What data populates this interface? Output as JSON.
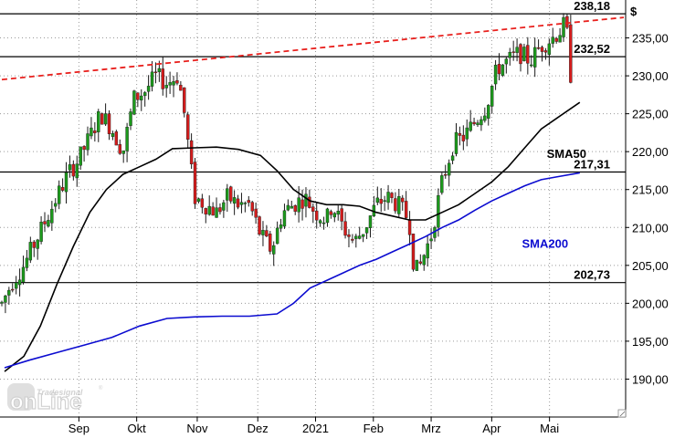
{
  "chart_data": {
    "type": "candlestick",
    "currency_label": "$",
    "y_ticks": [
      190,
      195,
      200,
      205,
      210,
      215,
      220,
      225,
      230,
      235
    ],
    "y_tick_labels": [
      "190,00",
      "195,00",
      "200,00",
      "205,00",
      "210,00",
      "215,00",
      "220,00",
      "225,00",
      "230,00",
      "235,00"
    ],
    "ylim": [
      185.0,
      240.0
    ],
    "x_labels": [
      "Sep",
      "Okt",
      "Nov",
      "Dez",
      "2021",
      "Feb",
      "Mrz",
      "Apr",
      "Mai"
    ],
    "x_label_days": [
      28,
      49,
      71,
      93,
      114,
      135,
      156,
      178,
      199
    ],
    "x_range_days": [
      0,
      226
    ],
    "levels": [
      {
        "value": 238.18,
        "label": "238,18"
      },
      {
        "value": 232.52,
        "label": "232,52"
      },
      {
        "value": 217.31,
        "label": "217,31"
      },
      {
        "value": 202.73,
        "label": "202,73"
      }
    ],
    "trendline": {
      "from": [
        0,
        229.5
      ],
      "to": [
        226,
        237.7
      ],
      "color": "#e8211e"
    },
    "series": [
      {
        "name": "SMA50",
        "color": "#000000",
        "points": [
          [
            1,
            191
          ],
          [
            8,
            193
          ],
          [
            14,
            197
          ],
          [
            20,
            202.5
          ],
          [
            26,
            207.5
          ],
          [
            32,
            212
          ],
          [
            38,
            215
          ],
          [
            44,
            217
          ],
          [
            50,
            218
          ],
          [
            56,
            219
          ],
          [
            62,
            220.4
          ],
          [
            70,
            220.5
          ],
          [
            78,
            220.6
          ],
          [
            86,
            220.3
          ],
          [
            94,
            219.5
          ],
          [
            100,
            217.5
          ],
          [
            106,
            215
          ],
          [
            112,
            213.5
          ],
          [
            118,
            213
          ],
          [
            124,
            213
          ],
          [
            130,
            212.8
          ],
          [
            136,
            212
          ],
          [
            142,
            211.5
          ],
          [
            148,
            211
          ],
          [
            154,
            211
          ],
          [
            160,
            212
          ],
          [
            166,
            213
          ],
          [
            172,
            214.5
          ],
          [
            178,
            216
          ],
          [
            184,
            218
          ],
          [
            190,
            220.5
          ],
          [
            196,
            223
          ],
          [
            202,
            224.5
          ],
          [
            210,
            226.5
          ]
        ]
      },
      {
        "name": "SMA200",
        "color": "#0b0bd0",
        "points": [
          [
            1,
            191.5
          ],
          [
            10,
            192.5
          ],
          [
            20,
            193.5
          ],
          [
            30,
            194.5
          ],
          [
            40,
            195.5
          ],
          [
            50,
            197
          ],
          [
            60,
            198
          ],
          [
            70,
            198.2
          ],
          [
            80,
            198.3
          ],
          [
            90,
            198.3
          ],
          [
            100,
            198.6
          ],
          [
            106,
            200
          ],
          [
            112,
            202
          ],
          [
            118,
            203
          ],
          [
            124,
            204
          ],
          [
            130,
            205
          ],
          [
            136,
            205.8
          ],
          [
            142,
            206.8
          ],
          [
            148,
            207.8
          ],
          [
            154,
            208.8
          ],
          [
            160,
            210
          ],
          [
            166,
            211
          ],
          [
            172,
            212.3
          ],
          [
            178,
            213.5
          ],
          [
            184,
            214.5
          ],
          [
            190,
            215.5
          ],
          [
            196,
            216.3
          ],
          [
            202,
            216.7
          ],
          [
            210,
            217.2
          ]
        ]
      }
    ],
    "series_labels": [
      {
        "name": "SMA50",
        "text": "SMA50",
        "color": "#000000",
        "at": [
          198,
          219.2
        ]
      },
      {
        "name": "SMA200",
        "text": "SMA200",
        "color": "#0b0bd0",
        "at": [
          189,
          207.3
        ]
      }
    ],
    "price_path": [
      [
        0,
        200
      ],
      [
        4,
        203
      ],
      [
        8,
        205
      ],
      [
        12,
        208
      ],
      [
        16,
        211
      ],
      [
        20,
        214
      ],
      [
        24,
        217
      ],
      [
        28,
        219
      ],
      [
        32,
        222
      ],
      [
        36,
        225
      ],
      [
        40,
        223
      ],
      [
        44,
        220
      ],
      [
        48,
        227
      ],
      [
        52,
        228
      ],
      [
        56,
        230
      ],
      [
        60,
        229
      ],
      [
        64,
        230
      ],
      [
        66,
        226
      ],
      [
        70,
        214
      ],
      [
        74,
        213
      ],
      [
        78,
        212
      ],
      [
        82,
        214
      ],
      [
        86,
        213
      ],
      [
        90,
        213
      ],
      [
        94,
        209
      ],
      [
        98,
        207
      ],
      [
        102,
        212
      ],
      [
        106,
        213
      ],
      [
        110,
        214
      ],
      [
        114,
        212
      ],
      [
        118,
        211
      ],
      [
        120,
        213
      ],
      [
        124,
        210
      ],
      [
        128,
        208
      ],
      [
        132,
        210
      ],
      [
        136,
        213
      ],
      [
        140,
        214
      ],
      [
        144,
        213
      ],
      [
        148,
        211
      ],
      [
        150,
        204
      ],
      [
        152,
        205
      ],
      [
        156,
        209
      ],
      [
        160,
        216
      ],
      [
        164,
        221
      ],
      [
        168,
        222
      ],
      [
        172,
        224
      ],
      [
        176,
        226
      ],
      [
        180,
        231
      ],
      [
        184,
        232
      ],
      [
        188,
        233
      ],
      [
        192,
        232
      ],
      [
        196,
        234
      ],
      [
        200,
        235
      ],
      [
        203,
        236
      ],
      [
        205,
        237
      ],
      [
        207,
        229
      ]
    ]
  },
  "logo": {
    "brand_small": "Tradesignal",
    "brand_big": "onLine",
    "registered": "®"
  }
}
